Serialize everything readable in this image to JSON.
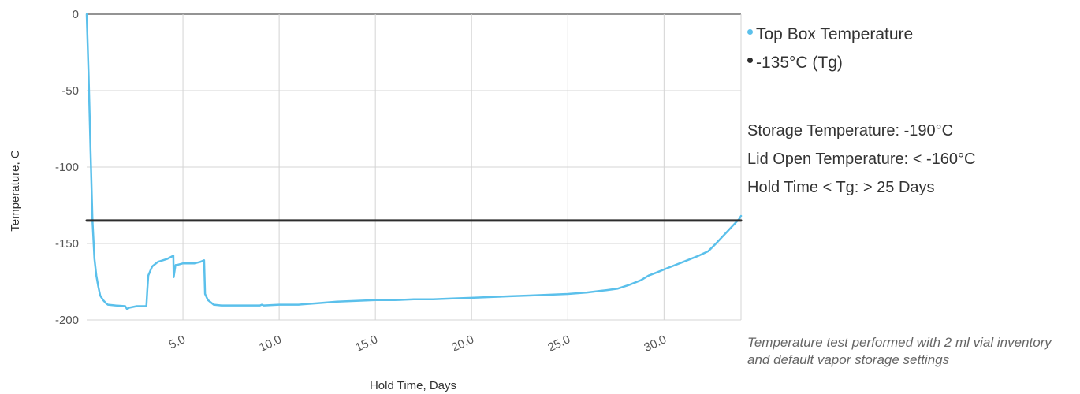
{
  "chart_data": {
    "type": "line",
    "xlabel": "Hold Time, Days",
    "ylabel": "Temperature, C",
    "xlim": [
      0,
      34
    ],
    "ylim": [
      -200,
      0
    ],
    "x_ticks": [
      5,
      10,
      15,
      20,
      25,
      30
    ],
    "x_tick_labels": [
      "5.0",
      "10.0",
      "15.0",
      "20.0",
      "25.0",
      "30.0"
    ],
    "y_ticks": [
      0,
      -50,
      -100,
      -150,
      -200
    ],
    "y_tick_labels": [
      "0",
      "-50",
      "-100",
      "-150",
      "-200"
    ],
    "grid": true,
    "legend_position": "right",
    "series": [
      {
        "name": "Top Box Temperature",
        "color": "#5bc0eb",
        "x": [
          0,
          0.1,
          0.2,
          0.3,
          0.4,
          0.5,
          0.6,
          0.7,
          0.85,
          1.0,
          1.1,
          1.5,
          2.0,
          2.1,
          2.2,
          2.4,
          2.6,
          2.7,
          2.8,
          3.1,
          3.15,
          3.2,
          3.4,
          3.7,
          4.2,
          4.5,
          4.52,
          4.6,
          4.62,
          4.7,
          5.0,
          5.3,
          5.6,
          5.9,
          6.1,
          6.15,
          6.3,
          6.6,
          7.0,
          8.0,
          9.0,
          9.1,
          9.2,
          10.0,
          11.0,
          12.0,
          13.0,
          14.0,
          15.0,
          16.0,
          17.0,
          18.0,
          19.0,
          20.0,
          21.0,
          22.0,
          23.0,
          24.0,
          25.0,
          26.0,
          27.0,
          27.6,
          28.2,
          28.8,
          29.2,
          29.6,
          30.2,
          31.0,
          31.8,
          32.3,
          32.7,
          33.0,
          33.3,
          33.6,
          33.9,
          34.0
        ],
        "y": [
          0,
          -40,
          -90,
          -135,
          -160,
          -171,
          -178,
          -184,
          -187,
          -189,
          -190,
          -190.5,
          -191,
          -193,
          -192,
          -191.5,
          -191,
          -191,
          -191,
          -191,
          -180,
          -171,
          -165,
          -162,
          -160,
          -158,
          -172,
          -165,
          -164,
          -164,
          -163,
          -163,
          -163,
          -162,
          -161,
          -183,
          -187,
          -190,
          -190.5,
          -190.5,
          -190.5,
          -190,
          -190.5,
          -190,
          -190,
          -189,
          -188,
          -187.5,
          -187,
          -187,
          -186.5,
          -186.5,
          -186,
          -185.5,
          -185,
          -184.5,
          -184,
          -183.5,
          -183,
          -182,
          -180.5,
          -179.5,
          -177,
          -174,
          -171,
          -169,
          -166,
          -162,
          -158,
          -155,
          -150,
          -146,
          -142,
          -138,
          -134,
          -132
        ]
      },
      {
        "name": "-135°C (Tg)",
        "color": "#2d2d2d",
        "x": [
          0,
          34
        ],
        "y": [
          -135,
          -135
        ]
      }
    ]
  },
  "specs": {
    "storage": "Storage Temperature: -190°C",
    "lid_open": "Lid Open Temperature: < -160°C",
    "hold_time": "Hold Time < Tg: > 25 Days"
  },
  "note": "Temperature test performed with 2 ml vial inventory and default vapor storage settings"
}
